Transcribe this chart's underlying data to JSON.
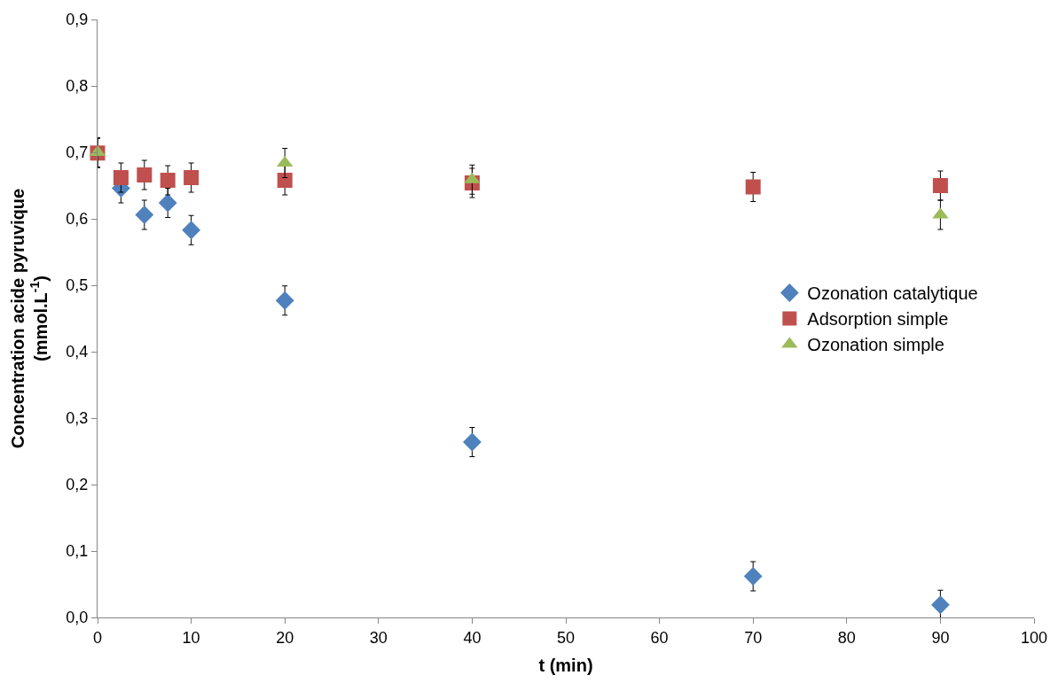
{
  "chart_data": {
    "type": "scatter",
    "xlabel": "t (min)",
    "ylabel": "Concentration acide pyruvique\n(mmol.L$^{-1}$)",
    "xlim": [
      0,
      100
    ],
    "xticks": [
      0,
      10,
      20,
      30,
      40,
      50,
      60,
      70,
      80,
      90,
      100
    ],
    "ylim": [
      0,
      0.9
    ],
    "yticks": [
      {
        "value": 0,
        "label": "0,0"
      },
      {
        "value": 0.1,
        "label": "0,1"
      },
      {
        "value": 0.2,
        "label": "0,2"
      },
      {
        "value": 0.3,
        "label": "0,3"
      },
      {
        "value": 0.4,
        "label": "0,4"
      },
      {
        "value": 0.5,
        "label": "0,5"
      },
      {
        "value": 0.6,
        "label": "0,6"
      },
      {
        "value": 0.7,
        "label": "0,7"
      },
      {
        "value": 0.8,
        "label": "0,8"
      },
      {
        "value": 0.9,
        "label": "0,9"
      }
    ],
    "legend": "right",
    "series": [
      {
        "name": "Ozonation catalytique",
        "color": "#4f81bd",
        "marker": "diamond",
        "x": [
          2.5,
          5,
          7.5,
          10,
          20,
          40,
          70,
          90
        ],
        "values": [
          0.646,
          0.606,
          0.624,
          0.583,
          0.477,
          0.264,
          0.062,
          0.019
        ],
        "errors": [
          0.022,
          0.022,
          0.022,
          0.022,
          0.022,
          0.022,
          0.022,
          0.022
        ]
      },
      {
        "name": "Adsorption simple",
        "color": "#c0504d",
        "marker": "square",
        "x": [
          0,
          2.5,
          5,
          7.5,
          10,
          20,
          40,
          70,
          90
        ],
        "values": [
          0.699,
          0.662,
          0.666,
          0.658,
          0.662,
          0.658,
          0.654,
          0.648,
          0.65
        ],
        "errors": [
          0.022,
          0.022,
          0.022,
          0.022,
          0.022,
          0.022,
          0.022,
          0.022,
          0.022
        ]
      },
      {
        "name": "Ozonation simple",
        "color": "#9bbb59",
        "marker": "triangle",
        "x": [
          0,
          20,
          40,
          90
        ],
        "values": [
          0.7,
          0.684,
          0.659,
          0.606
        ],
        "errors": [
          0.022,
          0.022,
          0.022,
          0.022
        ]
      }
    ]
  }
}
